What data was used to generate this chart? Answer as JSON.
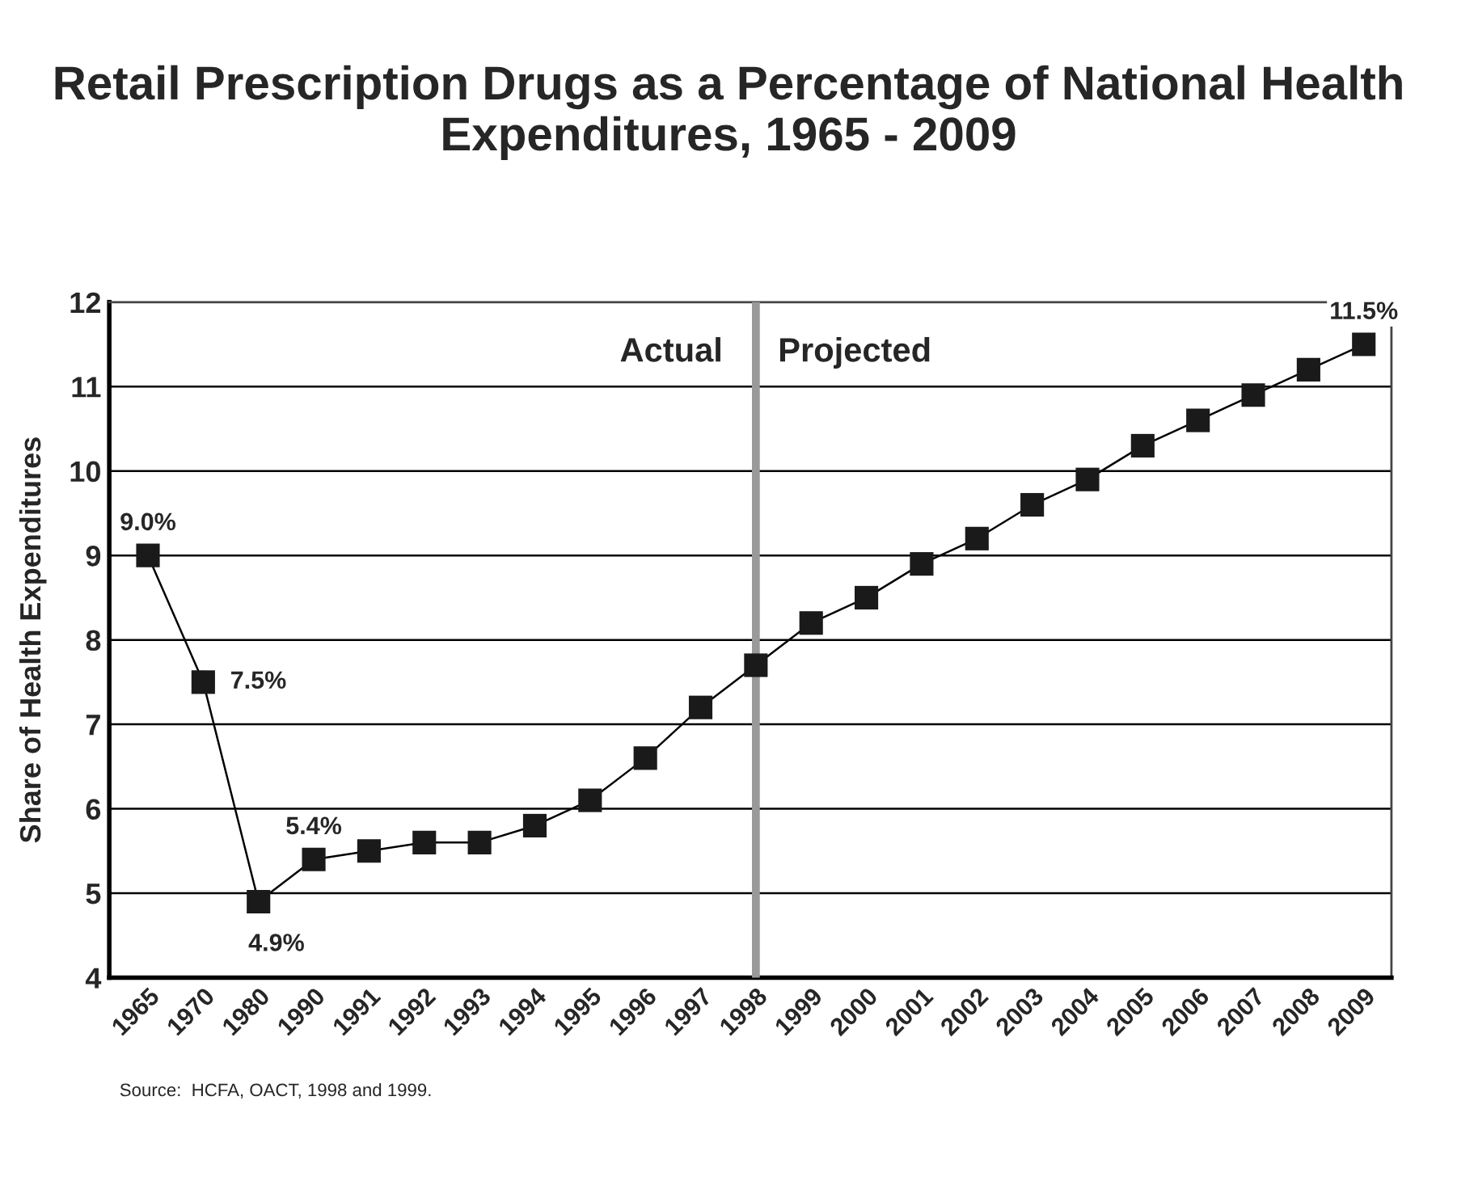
{
  "chart_data": {
    "type": "line",
    "title": "Retail Prescription Drugs as a Percentage of National Health Expenditures, 1965 - 2009",
    "ylabel": "Share of Health Expenditures",
    "categories": [
      "1965",
      "1970",
      "1980",
      "1990",
      "1991",
      "1992",
      "1993",
      "1994",
      "1995",
      "1996",
      "1997",
      "1998",
      "1999",
      "2000",
      "2001",
      "2002",
      "2003",
      "2004",
      "2005",
      "2006",
      "2007",
      "2008",
      "2009"
    ],
    "series": [
      {
        "color": "#1a1a1a",
        "values": [
          9.0,
          7.5,
          4.9,
          5.4,
          5.5,
          5.6,
          5.6,
          5.8,
          6.1,
          6.6,
          7.2,
          7.7,
          8.2,
          8.5,
          8.9,
          9.2,
          9.6,
          9.9,
          10.3,
          10.6,
          10.9,
          11.2,
          11.5
        ],
        "value_labels": [
          "9.0%",
          "7.5%",
          "4.9%",
          "5.4%",
          null,
          null,
          null,
          null,
          null,
          null,
          null,
          null,
          null,
          null,
          null,
          null,
          null,
          null,
          null,
          null,
          null,
          null,
          "11.5%"
        ]
      }
    ],
    "ylim": [
      4,
      12
    ],
    "yticks": [
      4,
      5,
      6,
      7,
      8,
      9,
      10,
      11,
      12
    ],
    "grid": "y",
    "marker": "square",
    "line_style": "solid",
    "ref_lines": [
      {
        "axis": "x",
        "value": "1998",
        "label": null,
        "color": "#999999"
      }
    ],
    "annotations": [
      "Actual",
      "Projected",
      "Source:  HCFA, OACT, 1998 and 1999."
    ]
  }
}
